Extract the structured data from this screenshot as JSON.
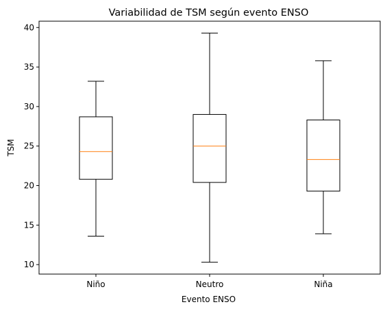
{
  "chart_data": {
    "type": "box",
    "title": "Variabilidad de TSM según evento ENSO",
    "xlabel": "Evento ENSO",
    "ylabel": "TSM",
    "categories": [
      "Niño",
      "Neutro",
      "Niña"
    ],
    "ylim": [
      8.8,
      40.8
    ],
    "yticks": [
      10,
      15,
      20,
      25,
      30,
      35,
      40
    ],
    "grid": false,
    "legend": "none",
    "colors": {
      "box": "#000000",
      "median": "#ff7f0e"
    },
    "boxes": [
      {
        "name": "Niño",
        "whisker_low": 13.6,
        "q1": 20.8,
        "median": 24.3,
        "q3": 28.7,
        "whisker_high": 33.2
      },
      {
        "name": "Neutro",
        "whisker_low": 10.3,
        "q1": 20.4,
        "median": 25.0,
        "q3": 29.0,
        "whisker_high": 39.3
      },
      {
        "name": "Niña",
        "whisker_low": 13.9,
        "q1": 19.3,
        "median": 23.3,
        "q3": 28.3,
        "whisker_high": 35.8
      }
    ]
  }
}
